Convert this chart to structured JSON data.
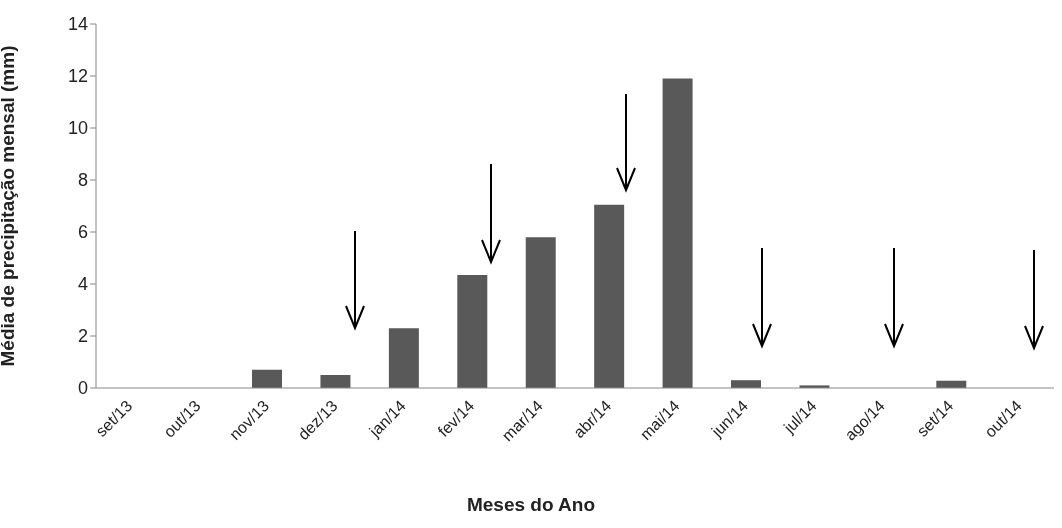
{
  "chart_data": {
    "type": "bar",
    "xlabel": "Meses do Ano",
    "ylabel": "Média de precipitação mensal (mm)",
    "categories": [
      "set/13",
      "out/13",
      "nov/13",
      "dez/13",
      "jan/14",
      "fev/14",
      "mar/14",
      "abr/14",
      "mai/14",
      "jun/14",
      "jul/14",
      "ago/14",
      "set/14",
      "out/14"
    ],
    "values": [
      0,
      0,
      0.7,
      0.5,
      2.3,
      4.35,
      5.8,
      7.05,
      11.9,
      0.3,
      0.1,
      0,
      0.28,
      0
    ],
    "color": "#595959",
    "ylim": [
      0,
      14
    ],
    "yticks": [
      0,
      2,
      4,
      6,
      8,
      10,
      12,
      14
    ],
    "grid": false,
    "legend": false
  }
}
